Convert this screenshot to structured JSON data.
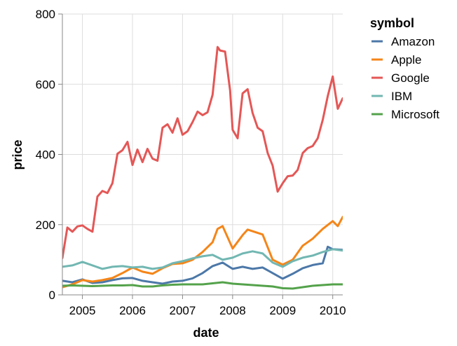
{
  "chart_data": {
    "type": "line",
    "xlabel": "date",
    "ylabel": "price",
    "xlim": [
      2004.6,
      2010.2
    ],
    "ylim": [
      0,
      800
    ],
    "xticks": [
      2005,
      2006,
      2007,
      2008,
      2009,
      2010
    ],
    "yticks": [
      0,
      200,
      400,
      600,
      800
    ],
    "grid": true,
    "legend": {
      "title": "symbol",
      "placement": "right"
    },
    "series": [
      {
        "name": "Amazon",
        "color": "#4c78a8",
        "x": [
          2004.6,
          2004.8,
          2005.0,
          2005.2,
          2005.4,
          2005.6,
          2005.8,
          2006.0,
          2006.2,
          2006.4,
          2006.6,
          2006.8,
          2007.0,
          2007.2,
          2007.4,
          2007.6,
          2007.8,
          2008.0,
          2008.2,
          2008.4,
          2008.6,
          2008.8,
          2009.0,
          2009.2,
          2009.4,
          2009.6,
          2009.8,
          2009.9,
          2010.0,
          2010.2
        ],
        "y": [
          40,
          36,
          44,
          34,
          36,
          42,
          47,
          48,
          40,
          36,
          32,
          38,
          40,
          47,
          62,
          82,
          92,
          74,
          80,
          74,
          78,
          62,
          46,
          60,
          76,
          85,
          90,
          137,
          130,
          128
        ]
      },
      {
        "name": "Apple",
        "color": "#f58518",
        "x": [
          2004.6,
          2004.8,
          2005.0,
          2005.2,
          2005.4,
          2005.6,
          2005.8,
          2006.0,
          2006.2,
          2006.4,
          2006.6,
          2006.8,
          2007.0,
          2007.2,
          2007.4,
          2007.6,
          2007.7,
          2007.8,
          2008.0,
          2008.2,
          2008.3,
          2008.6,
          2008.8,
          2009.0,
          2009.2,
          2009.4,
          2009.6,
          2009.8,
          2010.0,
          2010.1,
          2010.2
        ],
        "y": [
          22,
          30,
          42,
          38,
          42,
          48,
          62,
          78,
          66,
          60,
          76,
          88,
          90,
          100,
          122,
          150,
          188,
          196,
          132,
          170,
          186,
          172,
          100,
          86,
          100,
          140,
          160,
          188,
          210,
          196,
          222
        ]
      },
      {
        "name": "Google",
        "color": "#e45756",
        "x": [
          2004.6,
          2004.7,
          2004.8,
          2004.9,
          2005.0,
          2005.1,
          2005.2,
          2005.3,
          2005.4,
          2005.5,
          2005.6,
          2005.7,
          2005.8,
          2005.9,
          2006.0,
          2006.1,
          2006.2,
          2006.3,
          2006.4,
          2006.5,
          2006.6,
          2006.7,
          2006.8,
          2006.9,
          2007.0,
          2007.1,
          2007.2,
          2007.3,
          2007.4,
          2007.5,
          2007.6,
          2007.7,
          2007.75,
          2007.85,
          2007.95,
          2008.0,
          2008.1,
          2008.2,
          2008.3,
          2008.4,
          2008.5,
          2008.6,
          2008.7,
          2008.8,
          2008.9,
          2009.0,
          2009.1,
          2009.2,
          2009.3,
          2009.4,
          2009.5,
          2009.6,
          2009.7,
          2009.8,
          2009.9,
          2010.0,
          2010.1,
          2010.2
        ],
        "y": [
          105,
          192,
          180,
          195,
          198,
          188,
          180,
          280,
          296,
          290,
          318,
          402,
          412,
          436,
          370,
          414,
          378,
          416,
          388,
          382,
          476,
          486,
          462,
          503,
          456,
          466,
          492,
          522,
          512,
          520,
          570,
          706,
          696,
          693,
          582,
          470,
          446,
          574,
          586,
          518,
          476,
          466,
          404,
          368,
          294,
          318,
          338,
          340,
          356,
          404,
          418,
          424,
          446,
          498,
          566,
          622,
          530,
          560
        ]
      },
      {
        "name": "IBM",
        "color": "#72b7b2",
        "x": [
          2004.6,
          2004.8,
          2005.0,
          2005.2,
          2005.4,
          2005.6,
          2005.8,
          2006.0,
          2006.2,
          2006.4,
          2006.6,
          2006.8,
          2007.0,
          2007.2,
          2007.4,
          2007.6,
          2007.8,
          2008.0,
          2008.2,
          2008.4,
          2008.6,
          2008.8,
          2009.0,
          2009.2,
          2009.4,
          2009.6,
          2009.8,
          2010.0,
          2010.2
        ],
        "y": [
          80,
          84,
          94,
          84,
          74,
          80,
          82,
          78,
          80,
          74,
          78,
          90,
          96,
          104,
          110,
          114,
          100,
          106,
          118,
          124,
          118,
          92,
          80,
          96,
          106,
          112,
          122,
          130,
          126
        ]
      },
      {
        "name": "Microsoft",
        "color": "#54a24b",
        "x": [
          2004.6,
          2004.8,
          2005.0,
          2005.2,
          2005.4,
          2005.6,
          2005.8,
          2006.0,
          2006.2,
          2006.4,
          2006.6,
          2006.8,
          2007.0,
          2007.2,
          2007.4,
          2007.6,
          2007.8,
          2008.0,
          2008.2,
          2008.4,
          2008.6,
          2008.8,
          2009.0,
          2009.2,
          2009.4,
          2009.6,
          2009.8,
          2010.0,
          2010.2
        ],
        "y": [
          26,
          27,
          26,
          25,
          26,
          27,
          27,
          28,
          24,
          24,
          27,
          29,
          30,
          30,
          30,
          33,
          36,
          32,
          30,
          28,
          26,
          24,
          19,
          18,
          22,
          26,
          28,
          30,
          30
        ]
      }
    ]
  }
}
